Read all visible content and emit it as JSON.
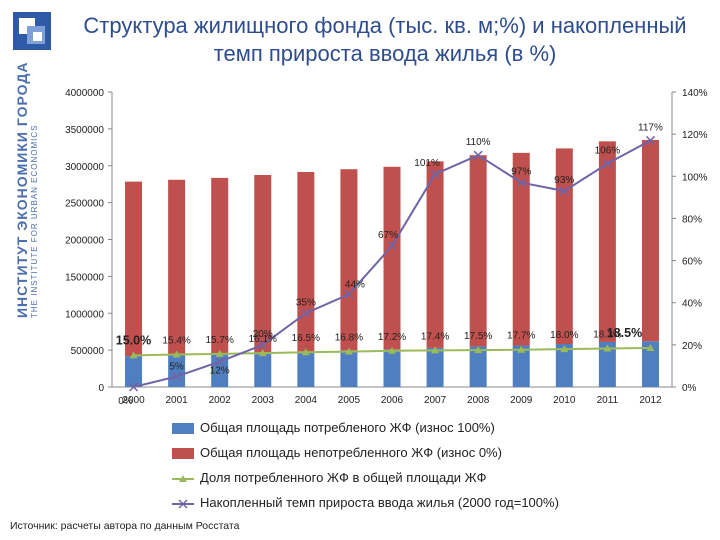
{
  "branding": {
    "line1": "ИНСТИТУТ ЭКОНОМИКИ ГОРОДА",
    "line2": "THE INSTITUTE FOR URBAN ECONOMICS"
  },
  "title": "Структура жилищного фонда (тыс. кв. м;%) и накопленный темп прироста ввода жилья (в %)",
  "source": "Источник: расчеты автора по данным Росстата",
  "colors": {
    "worn_bar": "#4f7fc1",
    "notworn_bar": "#c0504d",
    "share_line": "#9bbb59",
    "growth_line": "#7163a6"
  },
  "chart_data": {
    "type": "bar",
    "categories": [
      "2000",
      "2001",
      "2002",
      "2003",
      "2004",
      "2005",
      "2006",
      "2007",
      "2008",
      "2009",
      "2010",
      "2011",
      "2012"
    ],
    "y_left": {
      "range": [
        0,
        4000000
      ],
      "ticks": [
        "0",
        "500000",
        "1000000",
        "1500000",
        "2000000",
        "2500000",
        "3000000",
        "3500000",
        "4000000"
      ]
    },
    "y_right": {
      "range": [
        0,
        140
      ],
      "ticks": [
        "0%",
        "20%",
        "40%",
        "60%",
        "80%",
        "100%",
        "120%",
        "140%"
      ]
    },
    "series": [
      {
        "name": "Общая площадь потребленого ЖФ (износ 100%)",
        "kind": "bar-stacked",
        "axis": "left",
        "values": [
          418000,
          433000,
          448000,
          461000,
          482000,
          497000,
          510000,
          530000,
          550000,
          562000,
          583000,
          611000,
          619000
        ]
      },
      {
        "name": "Общая площадь непотребленного ЖФ (износ 0%)",
        "kind": "bar-stacked",
        "axis": "left",
        "values": [
          2367000,
          2377000,
          2387000,
          2414000,
          2434000,
          2456000,
          2476000,
          2530000,
          2593000,
          2613000,
          2652000,
          2720000,
          2730000
        ]
      },
      {
        "name": "Доля потребленного ЖФ в общей площади ЖФ",
        "kind": "line",
        "axis": "right",
        "values": [
          15.0,
          15.4,
          15.7,
          16.1,
          16.5,
          16.8,
          17.2,
          17.4,
          17.5,
          17.7,
          18.0,
          18.3,
          18.5
        ],
        "labels": [
          "15.0%",
          "15.4%",
          "15.7%",
          "16.1%",
          "16.5%",
          "16.8%",
          "17.2%",
          "17.4%",
          "17.5%",
          "17.7%",
          "18.0%",
          "18.3%",
          "18.5%"
        ]
      },
      {
        "name": "Накопленный темп прироста ввода жилья (2000 год=100%)",
        "kind": "line",
        "axis": "right",
        "values": [
          0,
          5,
          12,
          20,
          35,
          44,
          67,
          101,
          110,
          97,
          93,
          106,
          117
        ],
        "labels": [
          "0%",
          "5%",
          "12%",
          "20%",
          "35%",
          "44%",
          "67%",
          "101%",
          "110%",
          "97%",
          "93%",
          "106%",
          "117%"
        ]
      }
    ],
    "legend": "bottom"
  }
}
